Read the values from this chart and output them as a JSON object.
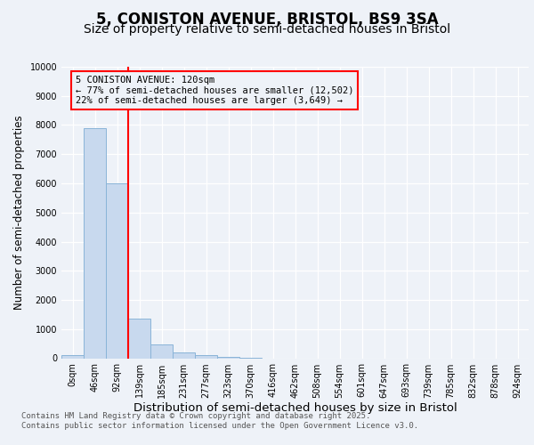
{
  "title": "5, CONISTON AVENUE, BRISTOL, BS9 3SA",
  "subtitle": "Size of property relative to semi-detached houses in Bristol",
  "xlabel": "Distribution of semi-detached houses by size in Bristol",
  "ylabel": "Number of semi-detached properties",
  "bar_labels": [
    "0sqm",
    "46sqm",
    "92sqm",
    "139sqm",
    "185sqm",
    "231sqm",
    "277sqm",
    "323sqm",
    "370sqm",
    "416sqm",
    "462sqm",
    "508sqm",
    "554sqm",
    "601sqm",
    "647sqm",
    "693sqm",
    "739sqm",
    "785sqm",
    "832sqm",
    "878sqm",
    "924sqm"
  ],
  "bar_values": [
    100,
    7900,
    6000,
    1350,
    470,
    200,
    120,
    60,
    10,
    0,
    0,
    0,
    0,
    0,
    0,
    0,
    0,
    0,
    0,
    0,
    0
  ],
  "bar_color": "#c8d9ee",
  "bar_edge_color": "#8ab4d8",
  "vline_color": "red",
  "annotation_text": "5 CONISTON AVENUE: 120sqm\n← 77% of semi-detached houses are smaller (12,502)\n22% of semi-detached houses are larger (3,649) →",
  "annotation_box_color": "red",
  "annotation_text_color": "black",
  "ylim": [
    0,
    10000
  ],
  "yticks": [
    0,
    1000,
    2000,
    3000,
    4000,
    5000,
    6000,
    7000,
    8000,
    9000,
    10000
  ],
  "footer_line1": "Contains HM Land Registry data © Crown copyright and database right 2025.",
  "footer_line2": "Contains public sector information licensed under the Open Government Licence v3.0.",
  "background_color": "#eef2f8",
  "title_fontsize": 12,
  "subtitle_fontsize": 10,
  "tick_fontsize": 7,
  "ylabel_fontsize": 8.5,
  "xlabel_fontsize": 9.5,
  "footer_fontsize": 6.5,
  "annotation_fontsize": 7.5
}
